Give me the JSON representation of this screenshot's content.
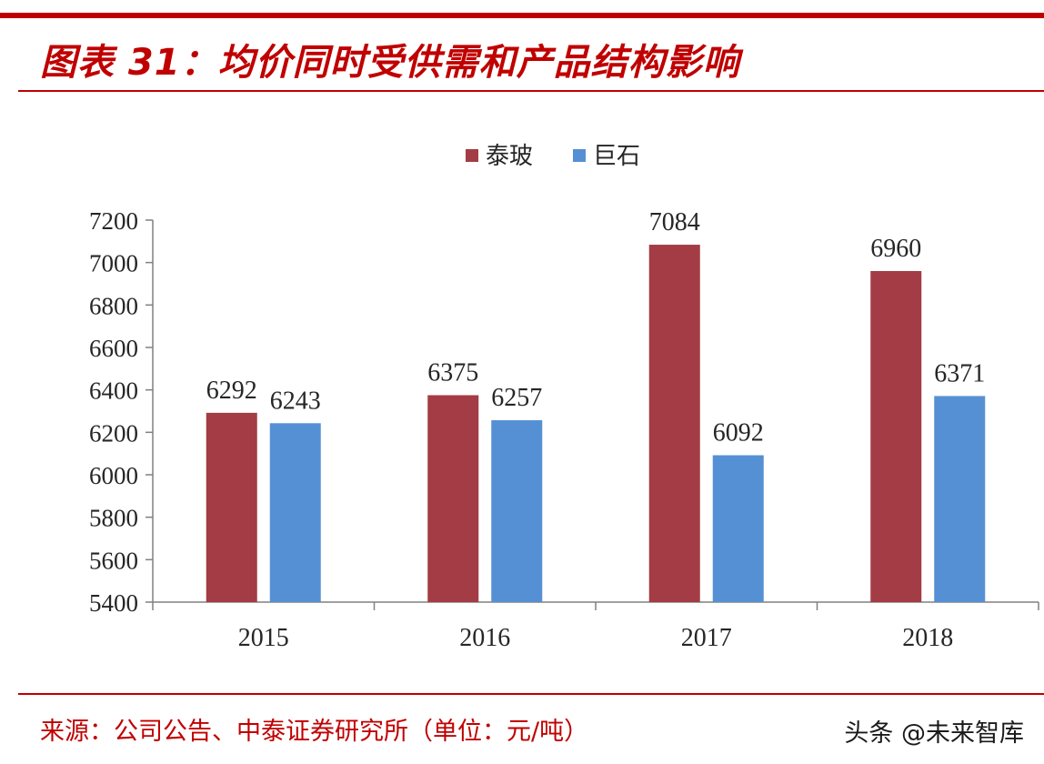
{
  "header": {
    "title": "图表 31：均价同时受供需和产品结构影响"
  },
  "chart_data": {
    "type": "bar",
    "categories": [
      "2015",
      "2016",
      "2017",
      "2018"
    ],
    "series": [
      {
        "name": "泰玻",
        "values": [
          6292,
          6375,
          7084,
          6960
        ],
        "color": "#a33c44"
      },
      {
        "name": "巨石",
        "values": [
          6243,
          6257,
          6092,
          6371
        ],
        "color": "#5590d4"
      }
    ],
    "ylim": [
      5400,
      7200
    ],
    "yticks": [
      5400,
      5600,
      5800,
      6000,
      6200,
      6400,
      6600,
      6800,
      7000,
      7200
    ],
    "legend_position": "top-center",
    "grid": false,
    "xlabel": "",
    "ylabel": ""
  },
  "footer": {
    "source": "来源：公司公告、中泰证券研究所（单位：元/吨）",
    "watermark": "头条 @未来智库"
  }
}
